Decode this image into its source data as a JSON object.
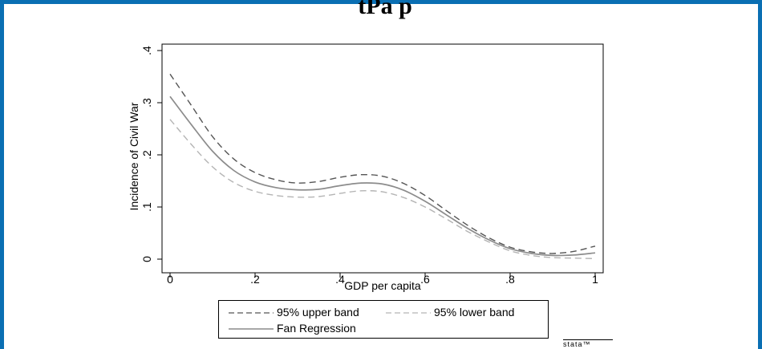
{
  "slide": {
    "title": "tPa p"
  },
  "chart_data": {
    "type": "line",
    "title": "",
    "xlabel": "GDP per capita",
    "ylabel": "Incidence of Civil War",
    "xlim": [
      0,
      1
    ],
    "ylim": [
      0,
      0.4
    ],
    "xticks": [
      "0",
      ".2",
      ".4",
      ".6",
      ".8",
      "1"
    ],
    "yticks": [
      "0",
      ".1",
      ".2",
      ".3",
      ".4"
    ],
    "grid": false,
    "legend_position": "bottom",
    "x": [
      0,
      0.05,
      0.1,
      0.15,
      0.2,
      0.25,
      0.3,
      0.35,
      0.4,
      0.45,
      0.5,
      0.55,
      0.6,
      0.65,
      0.7,
      0.75,
      0.8,
      0.85,
      0.9,
      0.95,
      1.0
    ],
    "series": [
      {
        "name": "95% upper band",
        "style": "dash-dark",
        "color": "#555555",
        "values": [
          0.355,
          0.295,
          0.235,
          0.192,
          0.166,
          0.152,
          0.146,
          0.149,
          0.157,
          0.162,
          0.159,
          0.145,
          0.122,
          0.093,
          0.065,
          0.041,
          0.023,
          0.014,
          0.011,
          0.015,
          0.025
        ]
      },
      {
        "name": "95% lower band",
        "style": "dash-light",
        "color": "#b4b4b4",
        "values": [
          0.268,
          0.22,
          0.177,
          0.147,
          0.13,
          0.122,
          0.119,
          0.12,
          0.126,
          0.131,
          0.129,
          0.118,
          0.1,
          0.077,
          0.053,
          0.033,
          0.016,
          0.007,
          0.003,
          0.002,
          0.001
        ]
      },
      {
        "name": "Fan Regression",
        "style": "solid",
        "color": "#8c8c8c",
        "values": [
          0.312,
          0.258,
          0.207,
          0.17,
          0.148,
          0.137,
          0.133,
          0.134,
          0.141,
          0.146,
          0.144,
          0.132,
          0.111,
          0.085,
          0.059,
          0.037,
          0.02,
          0.011,
          0.007,
          0.008,
          0.012
        ]
      }
    ]
  },
  "watermark": "stata™"
}
